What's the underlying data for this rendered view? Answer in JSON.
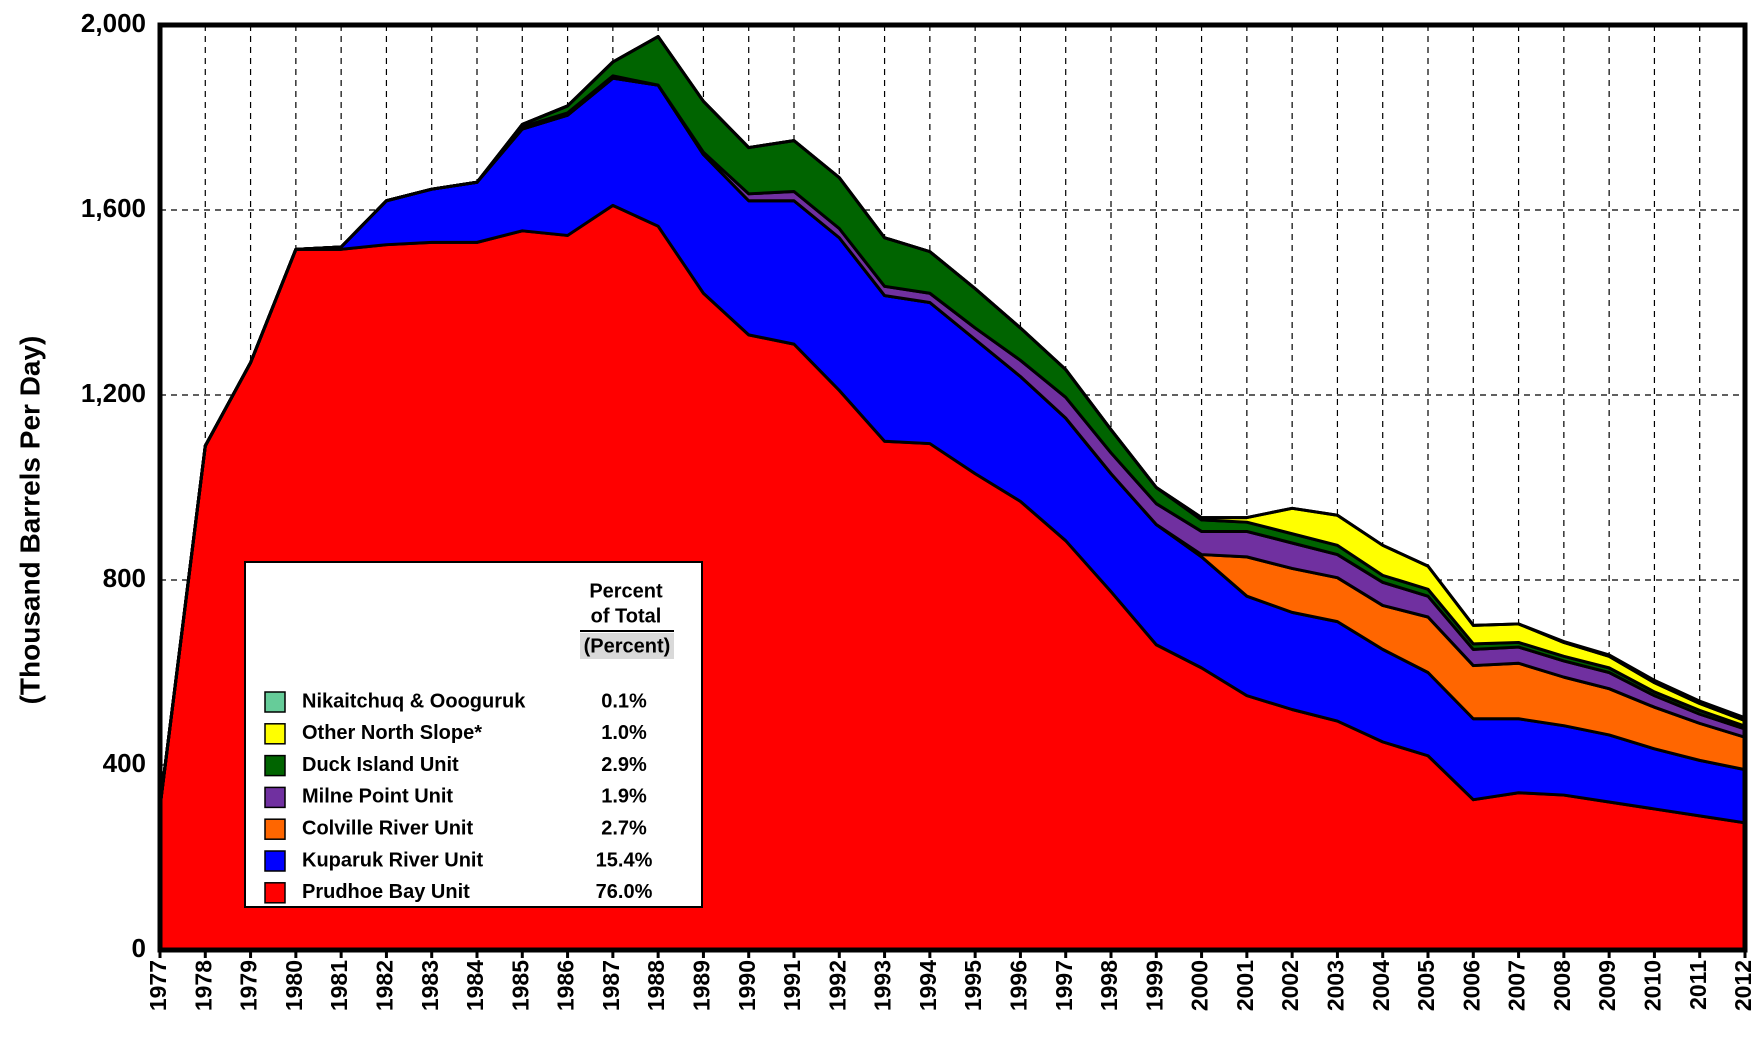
{
  "chart_data": {
    "type": "stacked_area",
    "y_label": "(Thousand Barrels Per Day)",
    "x": [
      1977,
      1978,
      1979,
      1980,
      1981,
      1982,
      1983,
      1984,
      1985,
      1986,
      1987,
      1988,
      1989,
      1990,
      1991,
      1992,
      1993,
      1994,
      1995,
      1996,
      1997,
      1998,
      1999,
      2000,
      2001,
      2002,
      2003,
      2004,
      2005,
      2006,
      2007,
      2008,
      2009,
      2010,
      2011,
      2012
    ],
    "xlim": [
      1977,
      2012
    ],
    "xticks": [
      1977,
      1978,
      1979,
      1980,
      1981,
      1982,
      1983,
      1984,
      1985,
      1986,
      1987,
      1988,
      1989,
      1990,
      1991,
      1992,
      1993,
      1994,
      1995,
      1996,
      1997,
      1998,
      1999,
      2000,
      2001,
      2002,
      2003,
      2004,
      2005,
      2006,
      2007,
      2008,
      2009,
      2010,
      2011,
      2012
    ],
    "ylim": [
      0,
      2000
    ],
    "yticks": [
      0,
      400,
      800,
      {
        "value": 1200,
        "label": "1,200"
      },
      {
        "value": 1600,
        "label": "1,600"
      },
      {
        "value": 2000,
        "label": "2,000"
      }
    ],
    "grid": true,
    "series": [
      {
        "name": "Prudhoe Bay Unit",
        "color": "#ff0000",
        "values": [
          310,
          1090,
          1270,
          1515,
          1515,
          1525,
          1530,
          1530,
          1555,
          1545,
          1610,
          1565,
          1420,
          1330,
          1310,
          1210,
          1100,
          1095,
          1030,
          970,
          885,
          775,
          660,
          610,
          550,
          520,
          495,
          450,
          420,
          325,
          340,
          335,
          320,
          305,
          290,
          275
        ]
      },
      {
        "name": "Kuparuk River Unit",
        "color": "#0000ff",
        "values": [
          0,
          0,
          0,
          0,
          5,
          95,
          115,
          130,
          220,
          260,
          275,
          305,
          300,
          290,
          310,
          330,
          315,
          305,
          290,
          270,
          265,
          255,
          260,
          240,
          215,
          210,
          215,
          200,
          180,
          175,
          160,
          150,
          145,
          130,
          120,
          115
        ]
      },
      {
        "name": "Colville River Unit",
        "color": "#ff6600",
        "values": [
          0,
          0,
          0,
          0,
          0,
          0,
          0,
          0,
          0,
          0,
          0,
          0,
          0,
          0,
          0,
          0,
          0,
          0,
          0,
          0,
          0,
          0,
          0,
          5,
          85,
          95,
          95,
          95,
          120,
          115,
          120,
          105,
          100,
          90,
          80,
          70
        ]
      },
      {
        "name": "Milne Point Unit",
        "color": "#7030a0",
        "values": [
          0,
          0,
          0,
          0,
          0,
          0,
          0,
          0,
          5,
          5,
          5,
          0,
          5,
          15,
          20,
          20,
          20,
          20,
          25,
          35,
          45,
          45,
          45,
          50,
          55,
          55,
          50,
          50,
          45,
          35,
          35,
          35,
          35,
          25,
          20,
          18
        ]
      },
      {
        "name": "Duck Island Unit",
        "color": "#006400",
        "values": [
          0,
          0,
          0,
          0,
          0,
          0,
          0,
          0,
          5,
          15,
          30,
          105,
          110,
          100,
          110,
          110,
          105,
          90,
          85,
          70,
          60,
          50,
          35,
          25,
          20,
          20,
          20,
          15,
          15,
          12,
          10,
          10,
          10,
          8,
          8,
          6
        ]
      },
      {
        "name": "Other North Slope*",
        "color": "#ffff00",
        "values": [
          0,
          0,
          0,
          0,
          0,
          0,
          0,
          0,
          0,
          0,
          0,
          0,
          0,
          0,
          0,
          0,
          0,
          0,
          0,
          0,
          0,
          0,
          0,
          5,
          10,
          55,
          65,
          65,
          50,
          40,
          40,
          30,
          25,
          20,
          15,
          12
        ]
      },
      {
        "name": "Nikaitchuq & Oooguruk",
        "color": "#66cc99",
        "values": [
          0,
          0,
          0,
          0,
          0,
          0,
          0,
          0,
          0,
          0,
          0,
          0,
          0,
          0,
          0,
          0,
          0,
          0,
          0,
          0,
          0,
          0,
          0,
          0,
          0,
          0,
          0,
          0,
          0,
          0,
          0,
          2,
          3,
          5,
          5,
          6
        ]
      }
    ],
    "legend": {
      "heading": [
        "Percent",
        "of Total"
      ],
      "unit": "(Percent)",
      "values": [
        76.0,
        15.4,
        2.7,
        1.9,
        2.9,
        1.0,
        0.1
      ],
      "value_labels": [
        "76.0%",
        "15.4%",
        "2.7%",
        "1.9%",
        "2.9%",
        "1.0%",
        "0.1%"
      ]
    }
  }
}
